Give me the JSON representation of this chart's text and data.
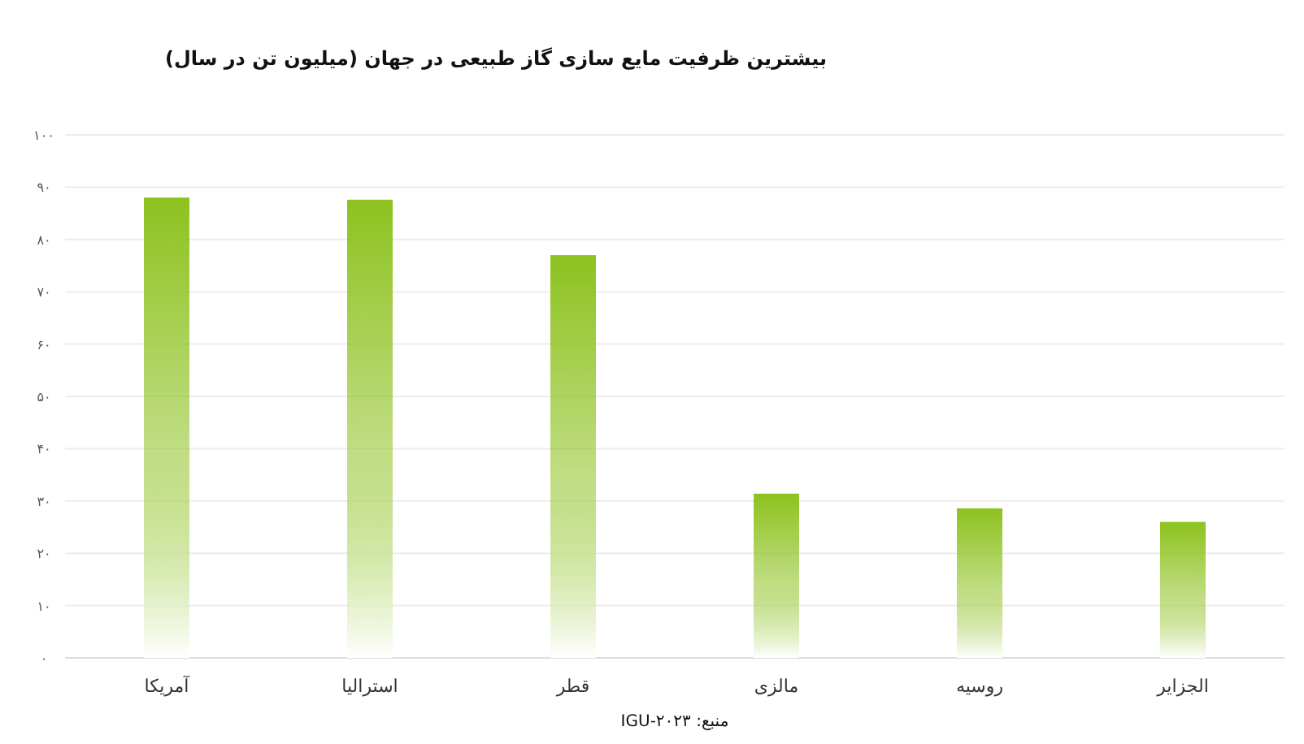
{
  "chart_data": {
    "type": "bar",
    "title": "بیشترین ظرفیت مایع سازی گاز طبیعی در جهان (میلیون تن در سال)",
    "categories": [
      "آمریکا",
      "استرالیا",
      "قطر",
      "مالزی",
      "روسیه",
      "الجزایر"
    ],
    "values": [
      88,
      87.6,
      77,
      31.4,
      28.6,
      26
    ],
    "color": "#8dc21f",
    "ylim": [
      0,
      100
    ],
    "yticks": [
      {
        "value": 0,
        "label": "۰"
      },
      {
        "value": 10,
        "label": "۱۰"
      },
      {
        "value": 20,
        "label": "۲۰"
      },
      {
        "value": 30,
        "label": "۳۰"
      },
      {
        "value": 40,
        "label": "۴۰"
      },
      {
        "value": 50,
        "label": "۵۰"
      },
      {
        "value": 60,
        "label": "۶۰"
      },
      {
        "value": 70,
        "label": "۷۰"
      },
      {
        "value": 80,
        "label": "۸۰"
      },
      {
        "value": 90,
        "label": "۹۰"
      },
      {
        "value": 100,
        "label": "۱۰۰"
      }
    ],
    "grid": "y",
    "annotations": [
      "منبع: IGU-۲۰۲۳"
    ]
  }
}
